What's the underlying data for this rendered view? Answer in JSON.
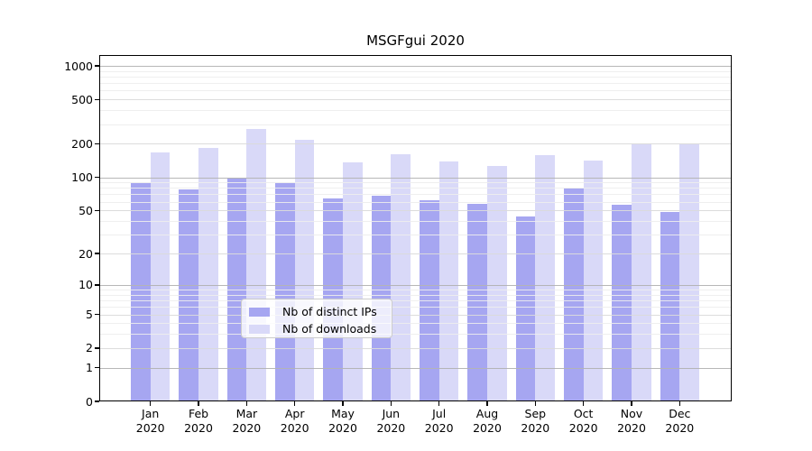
{
  "title": "MSGFgui 2020",
  "chart_data": {
    "type": "bar",
    "title": "MSGFgui 2020",
    "scale": "log1p",
    "categories": [
      "Jan",
      "Feb",
      "Mar",
      "Apr",
      "May",
      "Jun",
      "Jul",
      "Aug",
      "Sep",
      "Oct",
      "Nov",
      "Dec"
    ],
    "year": "2020",
    "series": [
      {
        "name": "Nb of distinct IPs",
        "color": "#a6a6f1",
        "values": [
          88,
          77,
          100,
          89,
          64,
          68,
          62,
          57,
          44,
          79,
          56,
          48
        ]
      },
      {
        "name": "Nb of downloads",
        "color": "#d9d9f8",
        "values": [
          166,
          185,
          270,
          219,
          136,
          160,
          138,
          126,
          157,
          142,
          197,
          197
        ]
      }
    ],
    "yticks": [
      0,
      1,
      2,
      5,
      10,
      20,
      50,
      100,
      200,
      500,
      1000
    ],
    "ylim": [
      0,
      1250
    ],
    "xlabel": "",
    "ylabel": "",
    "grid": "on",
    "legend_position": "lower center",
    "style": {
      "grid_major_color": "#b3b3b3",
      "grid_mid_color": "#dadada",
      "grid_minor_color": "#ededed",
      "spine_color": "#000000",
      "background": "#ffffff"
    }
  }
}
